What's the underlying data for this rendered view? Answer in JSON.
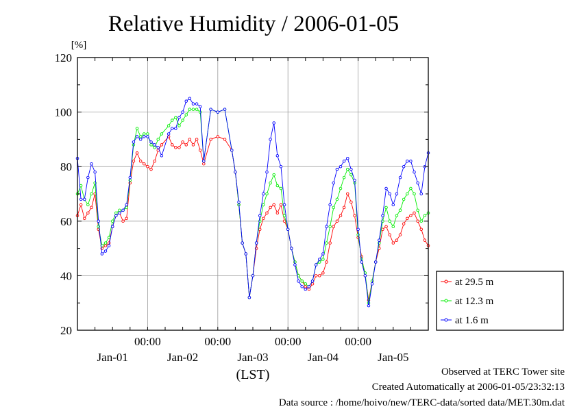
{
  "chart_data": {
    "type": "line",
    "title": "Relative Humidity / 2006-01-05",
    "ylabel": "[%]",
    "xlabel": "(LST)",
    "ylim": [
      20,
      120
    ],
    "yticks": [
      20,
      40,
      60,
      80,
      100,
      120
    ],
    "xlim": [
      0,
      5
    ],
    "x_unit": "days from start of Jan-01 window",
    "midnight_ticks": [
      {
        "x": 1,
        "label": "00:00"
      },
      {
        "x": 2,
        "label": "00:00"
      },
      {
        "x": 3,
        "label": "00:00"
      },
      {
        "x": 4,
        "label": "00:00"
      }
    ],
    "date_labels": [
      {
        "x": 0.5,
        "label": "Jan-01"
      },
      {
        "x": 1.5,
        "label": "Jan-02"
      },
      {
        "x": 2.5,
        "label": "Jan-03"
      },
      {
        "x": 3.5,
        "label": "Jan-04"
      },
      {
        "x": 4.5,
        "label": "Jan-05"
      }
    ],
    "grid": true,
    "legend_position": "bottom-right, outside plot",
    "series": [
      {
        "name": "at 29.5 m",
        "color": "#ff0000",
        "x": [
          0,
          0.05,
          0.1,
          0.15,
          0.2,
          0.25,
          0.3,
          0.35,
          0.4,
          0.45,
          0.5,
          0.55,
          0.6,
          0.65,
          0.7,
          0.75,
          0.8,
          0.85,
          0.9,
          0.95,
          1.0,
          1.05,
          1.1,
          1.15,
          1.2,
          1.3,
          1.35,
          1.4,
          1.45,
          1.5,
          1.55,
          1.6,
          1.65,
          1.7,
          1.75,
          1.8,
          1.9,
          2.0,
          2.1,
          2.2,
          2.25,
          2.3,
          2.35,
          2.4,
          2.45,
          2.5,
          2.55,
          2.6,
          2.65,
          2.7,
          2.75,
          2.8,
          2.85,
          2.9,
          2.95,
          3.0,
          3.05,
          3.1,
          3.15,
          3.2,
          3.25,
          3.3,
          3.35,
          3.4,
          3.45,
          3.5,
          3.55,
          3.6,
          3.65,
          3.7,
          3.75,
          3.8,
          3.85,
          3.9,
          3.95,
          4.0,
          4.05,
          4.1,
          4.15,
          4.2,
          4.25,
          4.3,
          4.35,
          4.4,
          4.45,
          4.5,
          4.55,
          4.6,
          4.65,
          4.7,
          4.75,
          4.8,
          4.85,
          4.9,
          4.95,
          5.0
        ],
        "y": [
          62,
          66,
          61,
          63,
          65,
          70,
          57,
          50,
          51,
          52,
          58,
          62,
          63,
          60,
          61,
          74,
          82,
          85,
          82,
          81,
          80,
          79,
          82,
          86,
          88,
          91,
          88,
          87,
          87,
          89,
          88,
          90,
          88,
          90,
          86,
          81,
          90,
          91,
          90,
          86,
          78,
          66,
          52,
          48,
          32,
          40,
          50,
          57,
          61,
          63,
          65,
          66,
          63,
          66,
          60,
          57,
          50,
          45,
          40,
          38,
          36,
          35,
          37,
          40,
          40,
          41,
          45,
          52,
          58,
          60,
          62,
          65,
          70,
          67,
          62,
          54,
          47,
          40,
          31,
          38,
          45,
          50,
          57,
          58,
          55,
          52,
          53,
          55,
          59,
          61,
          62,
          63,
          60,
          57,
          53,
          51
        ]
      },
      {
        "name": "at 12.3 m",
        "color": "#00ee00",
        "x": [
          0,
          0.05,
          0.1,
          0.15,
          0.2,
          0.25,
          0.3,
          0.35,
          0.4,
          0.45,
          0.5,
          0.55,
          0.6,
          0.65,
          0.7,
          0.75,
          0.8,
          0.85,
          0.9,
          0.95,
          1.0,
          1.05,
          1.1,
          1.15,
          1.2,
          1.3,
          1.35,
          1.4,
          1.45,
          1.5,
          1.55,
          1.6,
          1.65,
          1.7,
          1.75,
          1.8,
          1.9,
          2.0,
          2.1,
          2.2,
          2.25,
          2.3,
          2.35,
          2.4,
          2.45,
          2.5,
          2.55,
          2.6,
          2.65,
          2.7,
          2.75,
          2.8,
          2.85,
          2.9,
          2.95,
          3.0,
          3.05,
          3.1,
          3.15,
          3.2,
          3.25,
          3.3,
          3.35,
          3.4,
          3.45,
          3.5,
          3.55,
          3.6,
          3.65,
          3.7,
          3.75,
          3.8,
          3.85,
          3.9,
          3.95,
          4.0,
          4.05,
          4.1,
          4.15,
          4.2,
          4.25,
          4.3,
          4.35,
          4.4,
          4.45,
          4.5,
          4.55,
          4.6,
          4.65,
          4.7,
          4.75,
          4.8,
          4.85,
          4.9,
          4.95,
          5.0
        ],
        "y": [
          70,
          73,
          68,
          66,
          70,
          74,
          58,
          51,
          52,
          54,
          60,
          63,
          64,
          64,
          65,
          75,
          88,
          94,
          91,
          92,
          92,
          88,
          87,
          90,
          92,
          95,
          97,
          98,
          95,
          97,
          99,
          101,
          101,
          101,
          100,
          82,
          101,
          100,
          101,
          86,
          78,
          66,
          52,
          48,
          32,
          40,
          52,
          60,
          66,
          70,
          74,
          77,
          73,
          72,
          62,
          57,
          50,
          45,
          40,
          38,
          37,
          36,
          38,
          44,
          45,
          46,
          52,
          58,
          65,
          68,
          72,
          76,
          79,
          77,
          74,
          55,
          46,
          41,
          30,
          38,
          45,
          52,
          60,
          65,
          60,
          58,
          62,
          64,
          68,
          70,
          72,
          70,
          64,
          60,
          62,
          63
        ]
      },
      {
        "name": "at 1.6 m",
        "color": "#0000ff",
        "x": [
          0,
          0.05,
          0.1,
          0.15,
          0.2,
          0.25,
          0.3,
          0.35,
          0.4,
          0.45,
          0.5,
          0.55,
          0.6,
          0.65,
          0.7,
          0.75,
          0.8,
          0.85,
          0.9,
          0.95,
          1.0,
          1.05,
          1.1,
          1.15,
          1.2,
          1.3,
          1.35,
          1.4,
          1.45,
          1.5,
          1.55,
          1.6,
          1.65,
          1.7,
          1.75,
          1.8,
          1.9,
          2.0,
          2.1,
          2.2,
          2.25,
          2.3,
          2.35,
          2.4,
          2.45,
          2.5,
          2.55,
          2.6,
          2.65,
          2.7,
          2.75,
          2.8,
          2.85,
          2.9,
          2.95,
          3.0,
          3.05,
          3.1,
          3.15,
          3.2,
          3.25,
          3.3,
          3.35,
          3.4,
          3.45,
          3.5,
          3.55,
          3.6,
          3.65,
          3.7,
          3.75,
          3.8,
          3.85,
          3.9,
          3.95,
          4.0,
          4.05,
          4.1,
          4.15,
          4.2,
          4.25,
          4.3,
          4.35,
          4.4,
          4.45,
          4.5,
          4.55,
          4.6,
          4.65,
          4.7,
          4.75,
          4.8,
          4.85,
          4.9,
          4.95,
          5.0
        ],
        "y": [
          83,
          68,
          68,
          76,
          81,
          78,
          60,
          48,
          49,
          51,
          58,
          62,
          63,
          64,
          66,
          76,
          89,
          91,
          90,
          91,
          91,
          89,
          88,
          87,
          84,
          92,
          94,
          94,
          98,
          100,
          104,
          105,
          103,
          103,
          102,
          82,
          101,
          100,
          101,
          86,
          78,
          67,
          52,
          48,
          32,
          40,
          52,
          62,
          70,
          78,
          90,
          96,
          84,
          80,
          66,
          57,
          50,
          44,
          38,
          36,
          35,
          36,
          38,
          44,
          46,
          48,
          58,
          66,
          74,
          79,
          80,
          82,
          83,
          79,
          75,
          57,
          45,
          40,
          29,
          37,
          45,
          53,
          62,
          72,
          70,
          66,
          70,
          76,
          80,
          82,
          82,
          78,
          74,
          70,
          80,
          85
        ]
      }
    ]
  },
  "footer": {
    "site": "Observed at TERC Tower site",
    "created": "Created Automatically at 2006-01-05/23:32:13",
    "source": "Data source : /home/hoivo/new/TERC-data/sorted  data/MET.30m.dat"
  }
}
